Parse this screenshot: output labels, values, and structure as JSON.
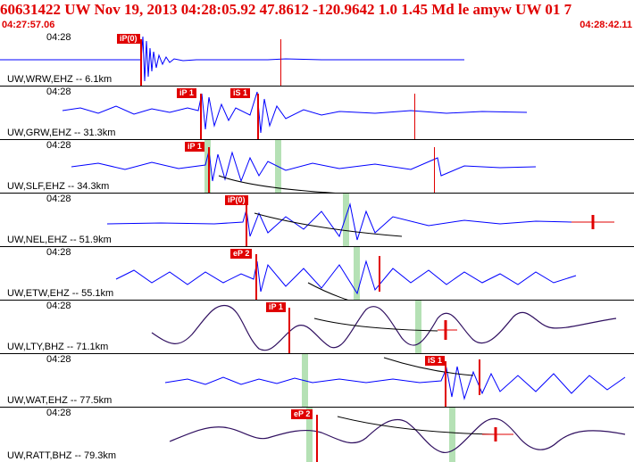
{
  "header": {
    "title": "60631422 UW Nov 19, 2013 04:28:05.92   47.8612 -120.9642  1.0 1.45 Md le amyw UW 01    7",
    "start_time": "04:27:57.06",
    "end_time": "04:28:42.11"
  },
  "colors": {
    "header_text": "#e00000",
    "trace": "#0000ff",
    "trace_long_period": "#301060",
    "pick": "#e00000",
    "window_band": "#a8dca8"
  },
  "panels": [
    {
      "time_label": "04:28",
      "station_label": "UW,WRW,EHZ -- 6.1km",
      "pick_label": "iP(0)"
    },
    {
      "time_label": "04:28",
      "station_label": "UW,GRW,EHZ -- 31.3km",
      "pick_label": "iP 1",
      "pick_label_2": "iS 1"
    },
    {
      "time_label": "04:28",
      "station_label": "UW,SLF,EHZ -- 34.3km",
      "pick_label": "iP 1"
    },
    {
      "time_label": "04:28",
      "station_label": "UW,NEL,EHZ -- 51.9km",
      "pick_label": "iP(0)"
    },
    {
      "time_label": "04:28",
      "station_label": "UW,ETW,EHZ -- 55.1km",
      "pick_label": "eP 2"
    },
    {
      "time_label": "04:28",
      "station_label": "UW,LTY,BHZ -- 71.1km",
      "pick_label": "iP 1"
    },
    {
      "time_label": "04:28",
      "station_label": "UW,WAT,EHZ -- 77.5km",
      "pick_label": "iS 1"
    },
    {
      "time_label": "04:28",
      "station_label": "UW,RATT,BHZ -- 79.3km",
      "pick_label": "eP 2"
    }
  ]
}
